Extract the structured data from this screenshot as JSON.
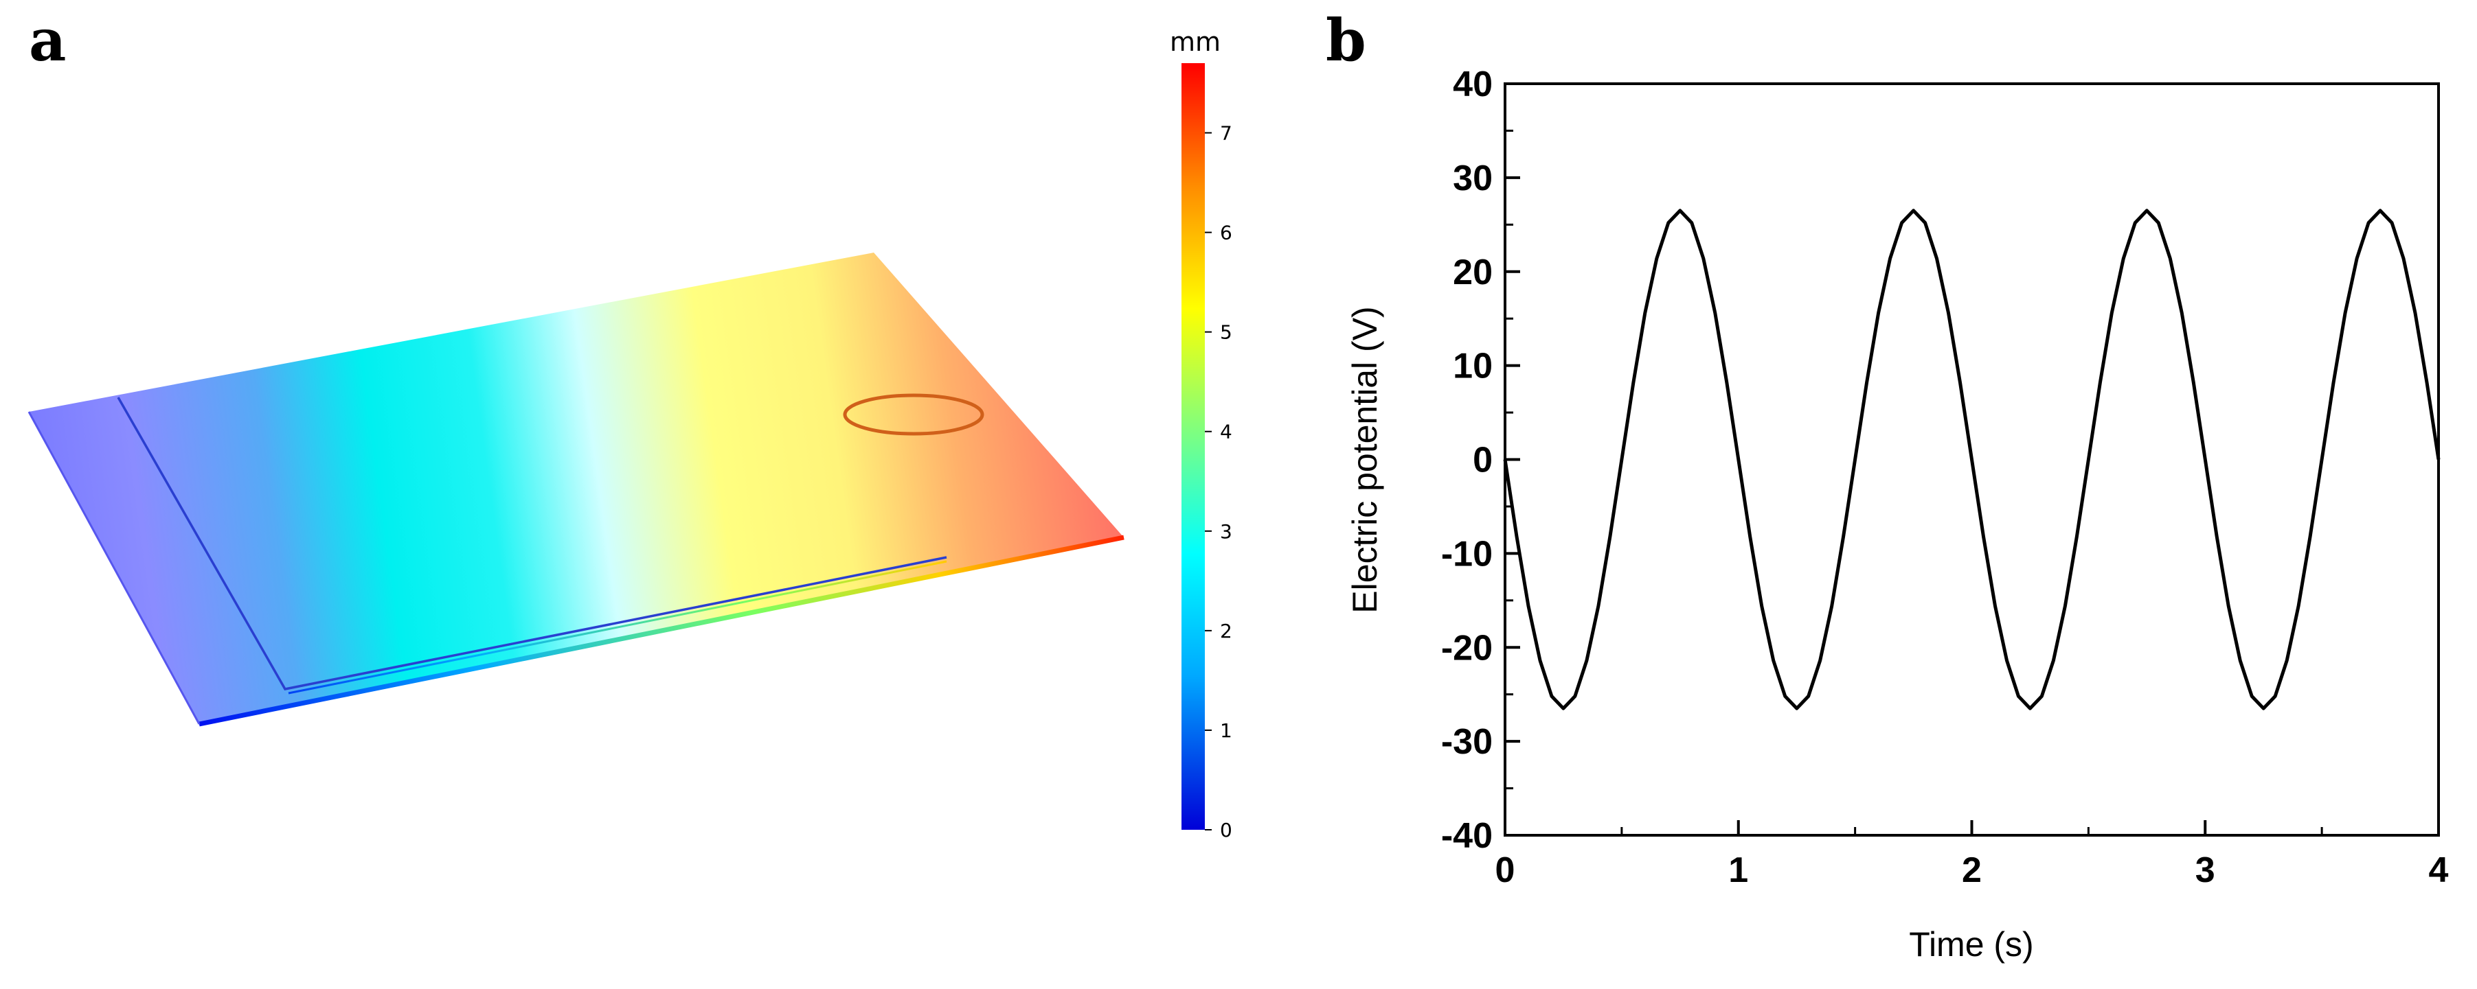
{
  "panels": {
    "a_label": "a",
    "b_label": "b"
  },
  "colorbar": {
    "unit": "mm",
    "ticks": [
      "0",
      "1",
      "2",
      "3",
      "4",
      "5",
      "6",
      "7"
    ],
    "min": 0,
    "max": 7.7,
    "colors": [
      "#0000d8",
      "#00a8ff",
      "#00ffff",
      "#7fff7f",
      "#ffff00",
      "#ff8c00",
      "#ff0000"
    ]
  },
  "chart_data": {
    "type": "line",
    "title": "",
    "xlabel": "Time (s)",
    "ylabel": "Electric potential (V)",
    "xlim": [
      0,
      4
    ],
    "ylim": [
      -40,
      40
    ],
    "xticks": [
      "0",
      "1",
      "2",
      "3",
      "4"
    ],
    "yticks": [
      "40",
      "30",
      "20",
      "10",
      "0",
      "-10",
      "-20",
      "-30",
      "-40"
    ],
    "series": [
      {
        "name": "Electric potential",
        "x": [
          0,
          0.05,
          0.1,
          0.15,
          0.2,
          0.25,
          0.3,
          0.35,
          0.4,
          0.45,
          0.5,
          0.55,
          0.6,
          0.65,
          0.7,
          0.75,
          0.8,
          0.85,
          0.9,
          0.95,
          1.0,
          1.05,
          1.1,
          1.15,
          1.2,
          1.25,
          1.3,
          1.35,
          1.4,
          1.45,
          1.5,
          1.55,
          1.6,
          1.65,
          1.7,
          1.75,
          1.8,
          1.85,
          1.9,
          1.95,
          2.0,
          2.05,
          2.1,
          2.15,
          2.2,
          2.25,
          2.3,
          2.35,
          2.4,
          2.45,
          2.5,
          2.55,
          2.6,
          2.65,
          2.7,
          2.75,
          2.8,
          2.85,
          2.9,
          2.95,
          3.0,
          3.05,
          3.1,
          3.15,
          3.2,
          3.25,
          3.3,
          3.35,
          3.4,
          3.45,
          3.5,
          3.55,
          3.6,
          3.65,
          3.7,
          3.75,
          3.8,
          3.85,
          3.9,
          3.95,
          4.0
        ],
        "values": [
          0,
          -8.2,
          -15.6,
          -21.4,
          -25.2,
          -26.5,
          -25.2,
          -21.4,
          -15.6,
          -8.2,
          0,
          8.2,
          15.6,
          21.4,
          25.2,
          26.5,
          25.2,
          21.4,
          15.6,
          8.2,
          0,
          -8.2,
          -15.6,
          -21.4,
          -25.2,
          -26.5,
          -25.2,
          -21.4,
          -15.6,
          -8.2,
          0,
          8.2,
          15.6,
          21.4,
          25.2,
          26.5,
          25.2,
          21.4,
          15.6,
          8.2,
          0,
          -8.2,
          -15.6,
          -21.4,
          -25.2,
          -26.5,
          -25.2,
          -21.4,
          -15.6,
          -8.2,
          0,
          8.2,
          15.6,
          21.4,
          25.2,
          26.5,
          25.2,
          21.4,
          15.6,
          8.2,
          0,
          -8.2,
          -15.6,
          -21.4,
          -25.2,
          -26.5,
          -25.2,
          -21.4,
          -15.6,
          -8.2,
          0,
          8.2,
          15.6,
          21.4,
          25.2,
          26.5,
          25.2,
          21.4,
          15.6,
          8.2,
          0
        ]
      }
    ]
  }
}
